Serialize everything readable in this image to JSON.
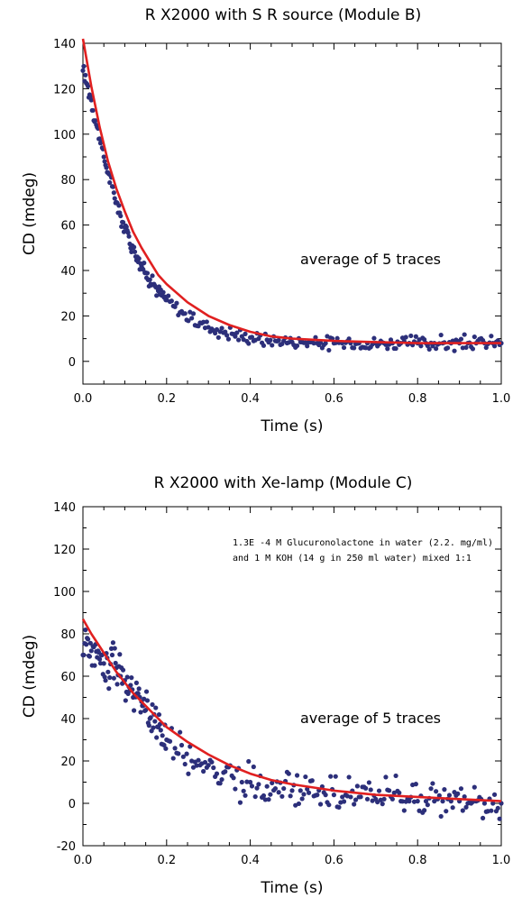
{
  "chart_data": [
    {
      "type": "scatter",
      "title": "R X2000 with S R  source (Module B)",
      "xlabel": "Time (s)",
      "ylabel": "CD (mdeg)",
      "xlim": [
        0,
        1.0
      ],
      "ylim": [
        -10,
        140
      ],
      "xticks": [
        0,
        0.2,
        0.4,
        0.6,
        0.8,
        1.0
      ],
      "xtick_labels": [
        "0.0",
        "0.2",
        "0.4",
        "0.6",
        "0.8",
        "1.0"
      ],
      "yticks": [
        0,
        20,
        40,
        60,
        80,
        100,
        120,
        140
      ],
      "ytick_labels": [
        "0",
        "20",
        "40",
        "60",
        "80",
        "100",
        "120",
        "140"
      ],
      "annotations": [
        "average of 5 traces"
      ],
      "grid": false,
      "legend": "none",
      "series": [
        {
          "kind": "scatter",
          "color": "#2c2f7a",
          "description": "data points",
          "x": [
            0.0,
            0.01,
            0.02,
            0.03,
            0.04,
            0.05,
            0.06,
            0.07,
            0.08,
            0.09,
            0.1,
            0.11,
            0.12,
            0.13,
            0.14,
            0.15,
            0.16,
            0.17,
            0.18,
            0.19,
            0.2,
            0.22,
            0.24,
            0.26,
            0.28,
            0.3,
            0.32,
            0.34,
            0.36,
            0.38,
            0.4,
            0.42,
            0.44,
            0.46,
            0.48,
            0.5,
            0.52,
            0.54,
            0.56,
            0.58,
            0.6,
            0.62,
            0.64,
            0.66,
            0.68,
            0.7,
            0.72,
            0.74,
            0.76,
            0.78,
            0.8,
            0.82,
            0.84,
            0.86,
            0.88,
            0.9,
            0.92,
            0.94,
            0.96,
            0.98,
            1.0
          ],
          "y": [
            128,
            122,
            115,
            106,
            98,
            90,
            83,
            77,
            70,
            64,
            59,
            55,
            50,
            46,
            42,
            39,
            36,
            34,
            31,
            29,
            27,
            24,
            21,
            19,
            17,
            15,
            14,
            13,
            12,
            11,
            10.5,
            10,
            9.5,
            9,
            9,
            8.5,
            8.5,
            8.5,
            8,
            8,
            8,
            8,
            8,
            8,
            8,
            8,
            8,
            8,
            8,
            8,
            8,
            8,
            8,
            8,
            8,
            8,
            8,
            8,
            8,
            8,
            8
          ]
        },
        {
          "kind": "line",
          "color": "#e02020",
          "description": "fit",
          "x": [
            0.0,
            0.02,
            0.04,
            0.06,
            0.08,
            0.1,
            0.12,
            0.14,
            0.16,
            0.18,
            0.2,
            0.25,
            0.3,
            0.35,
            0.4,
            0.45,
            0.5,
            0.6,
            0.7,
            0.8,
            0.9,
            1.0
          ],
          "y": [
            142,
            121,
            103,
            88,
            76,
            66,
            57,
            50,
            44,
            38,
            34,
            26,
            20,
            16,
            13,
            11,
            10,
            9,
            8.5,
            8,
            8,
            8
          ]
        }
      ]
    },
    {
      "type": "scatter",
      "title": "R X2000 with Xe-lamp (Module C)",
      "xlabel": "Time (s)",
      "ylabel": "CD (mdeg)",
      "xlim": [
        0,
        1.0
      ],
      "ylim": [
        -20,
        140
      ],
      "xticks": [
        0,
        0.2,
        0.4,
        0.6,
        0.8,
        1.0
      ],
      "xtick_labels": [
        "0.0",
        "0.2",
        "0.4",
        "0.6",
        "0.8",
        "1.0"
      ],
      "yticks": [
        -20,
        0,
        20,
        40,
        60,
        80,
        100,
        120,
        140
      ],
      "ytick_labels": [
        "-20",
        "0",
        "20",
        "40",
        "60",
        "80",
        "100",
        "120",
        "140"
      ],
      "annotations": [
        "1.3E -4 M Glucuronolactone in water (2.2. mg/ml)",
        "and 1 M KOH (14 g in 250 ml water) mixed 1:1",
        "average of 5 traces"
      ],
      "grid": false,
      "legend": "none",
      "series": [
        {
          "kind": "scatter",
          "color": "#2c2f7a",
          "description": "data points",
          "x": [
            0.0,
            0.01,
            0.02,
            0.03,
            0.04,
            0.05,
            0.06,
            0.07,
            0.08,
            0.09,
            0.1,
            0.11,
            0.12,
            0.13,
            0.14,
            0.15,
            0.16,
            0.17,
            0.18,
            0.19,
            0.2,
            0.22,
            0.24,
            0.26,
            0.28,
            0.3,
            0.32,
            0.34,
            0.36,
            0.38,
            0.4,
            0.42,
            0.44,
            0.46,
            0.48,
            0.5,
            0.52,
            0.54,
            0.56,
            0.58,
            0.6,
            0.62,
            0.64,
            0.66,
            0.68,
            0.7,
            0.72,
            0.74,
            0.76,
            0.78,
            0.8,
            0.82,
            0.84,
            0.86,
            0.88,
            0.9,
            0.92,
            0.94,
            0.96,
            0.98,
            1.0
          ],
          "y": [
            70,
            78,
            72,
            75,
            68,
            66,
            62,
            70,
            64,
            60,
            58,
            55,
            50,
            52,
            48,
            44,
            40,
            42,
            36,
            32,
            30,
            26,
            22,
            20,
            18,
            18,
            14,
            15,
            12,
            10,
            10,
            9,
            8,
            7,
            7,
            6,
            6,
            5,
            4,
            4,
            4,
            3,
            3,
            3,
            2,
            2,
            2,
            2,
            1,
            1,
            1,
            1,
            1,
            1,
            1,
            1,
            0,
            1,
            0,
            0,
            0
          ]
        },
        {
          "kind": "line",
          "color": "#e02020",
          "description": "fit",
          "x": [
            0.0,
            0.02,
            0.04,
            0.06,
            0.08,
            0.1,
            0.12,
            0.14,
            0.16,
            0.18,
            0.2,
            0.25,
            0.3,
            0.35,
            0.4,
            0.45,
            0.5,
            0.6,
            0.7,
            0.8,
            0.9,
            1.0
          ],
          "y": [
            87,
            80,
            74,
            68,
            62,
            57,
            52,
            48,
            44,
            40,
            36,
            29,
            23,
            18,
            14,
            11,
            9,
            6,
            4,
            3,
            2,
            1
          ]
        }
      ]
    }
  ]
}
